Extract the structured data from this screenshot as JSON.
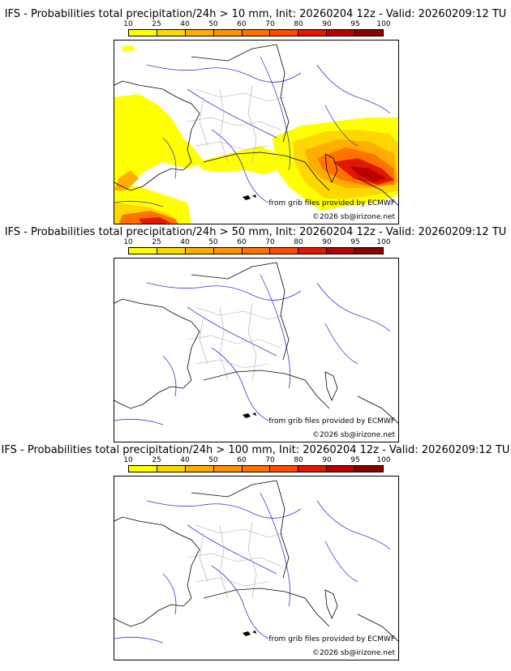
{
  "legend": {
    "labels": [
      "10",
      "25",
      "40",
      "50",
      "60",
      "70",
      "80",
      "90",
      "95",
      "100"
    ],
    "colors": [
      "#ffff00",
      "#ffd700",
      "#ffae00",
      "#ff9200",
      "#ff7200",
      "#ff4a00",
      "#e01800",
      "#b80000",
      "#8a0000",
      "#5a0000"
    ]
  },
  "credits": {
    "source": "from grib files provided by ECMWF",
    "copyright": "©2026 sb@irizone.net"
  },
  "panels": [
    {
      "title": "IFS - Probabilities total precipitation/24h > 10 mm, Init: 20260204 12z - Valid: 20260209:12 TU"
    },
    {
      "title": "IFS - Probabilities total precipitation/24h > 50 mm, Init: 20260204 12z - Valid: 20260209:12 TU"
    },
    {
      "title": "IFS - Probabilities total precipitation/24h > 100 mm, Init: 20260204 12z - Valid: 20260209:12 TU"
    }
  ]
}
